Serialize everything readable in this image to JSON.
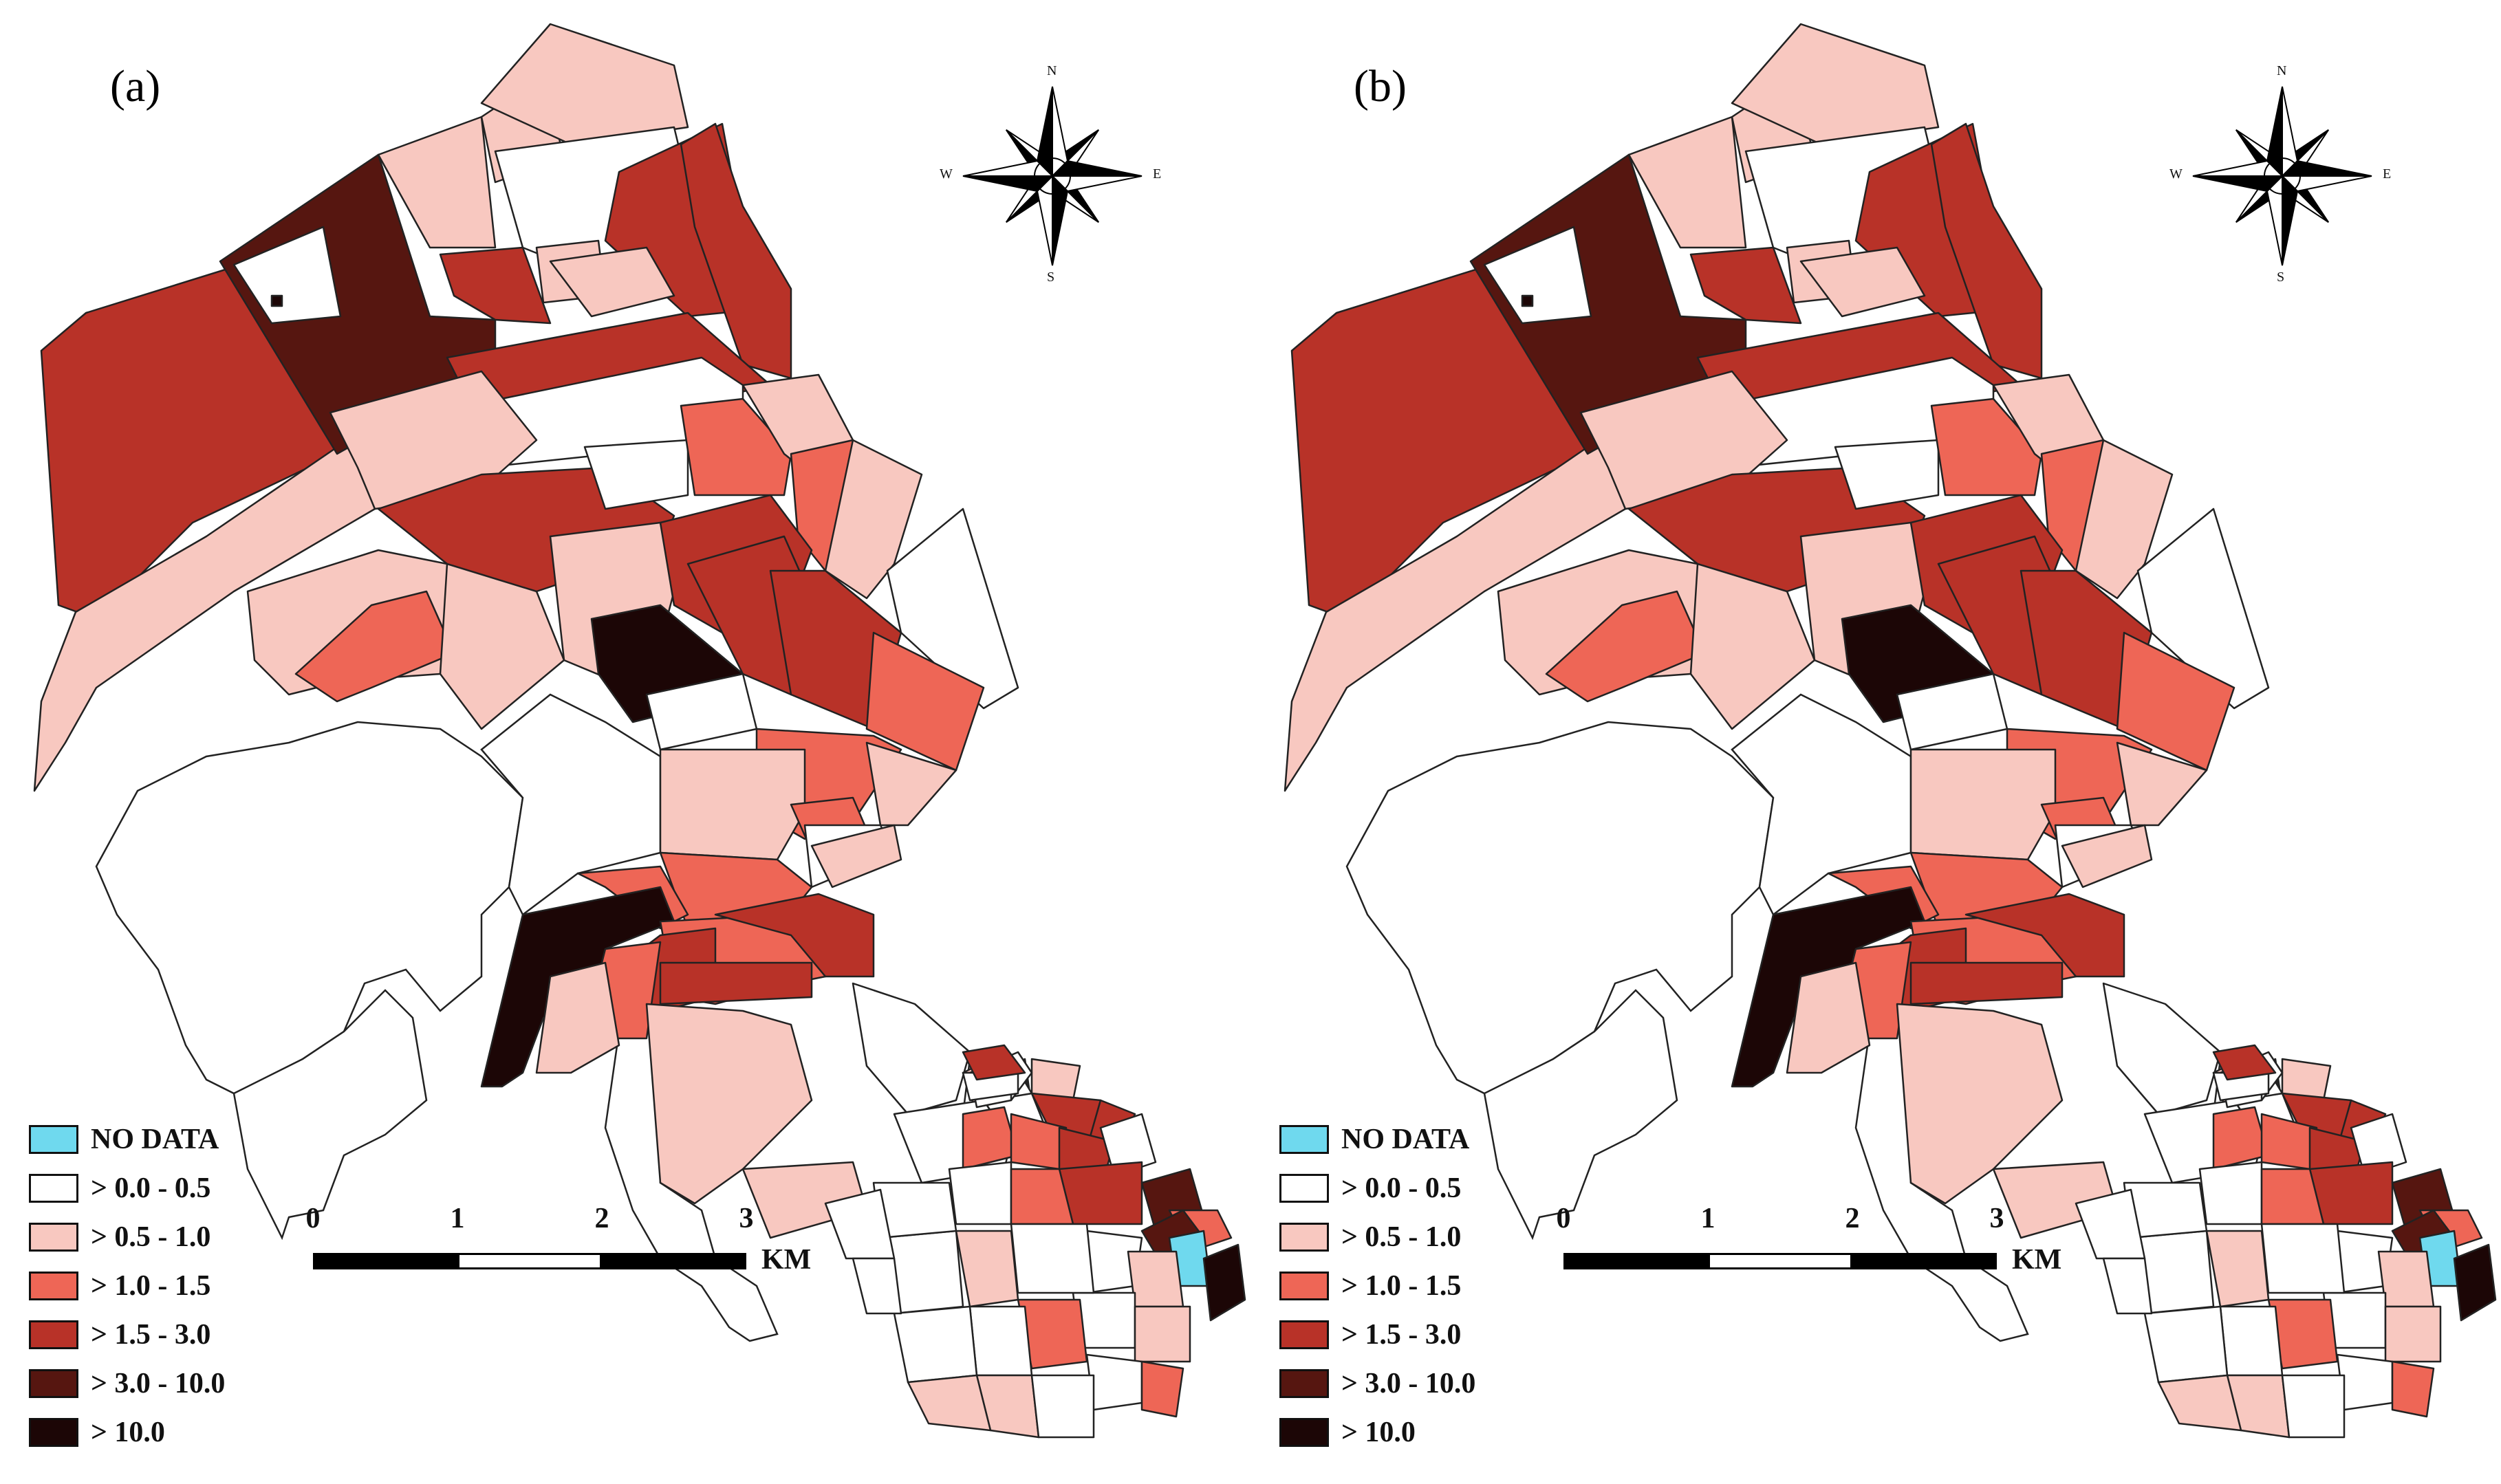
{
  "panels": [
    {
      "id": "a",
      "label": "(a)"
    },
    {
      "id": "b",
      "label": "(b)"
    }
  ],
  "compass": {
    "north": "N",
    "south": "S",
    "east": "E",
    "west": "W"
  },
  "legend": [
    {
      "label": "NO DATA",
      "color": "#6fd9ee"
    },
    {
      "label": "> 0.0 - 0.5",
      "color": "#ffffff"
    },
    {
      "label": "> 0.5 - 1.0",
      "color": "#f8c8c0"
    },
    {
      "label": "> 1.0 - 1.5",
      "color": "#ee6656"
    },
    {
      "label": "> 1.5 - 3.0",
      "color": "#b83228"
    },
    {
      "label": "> 3.0 - 10.0",
      "color": "#561610"
    },
    {
      "label": "> 10.0",
      "color": "#1c0606"
    }
  ],
  "scalebar": {
    "ticks": [
      "0",
      "1",
      "2",
      "3"
    ],
    "unit": "KM"
  }
}
